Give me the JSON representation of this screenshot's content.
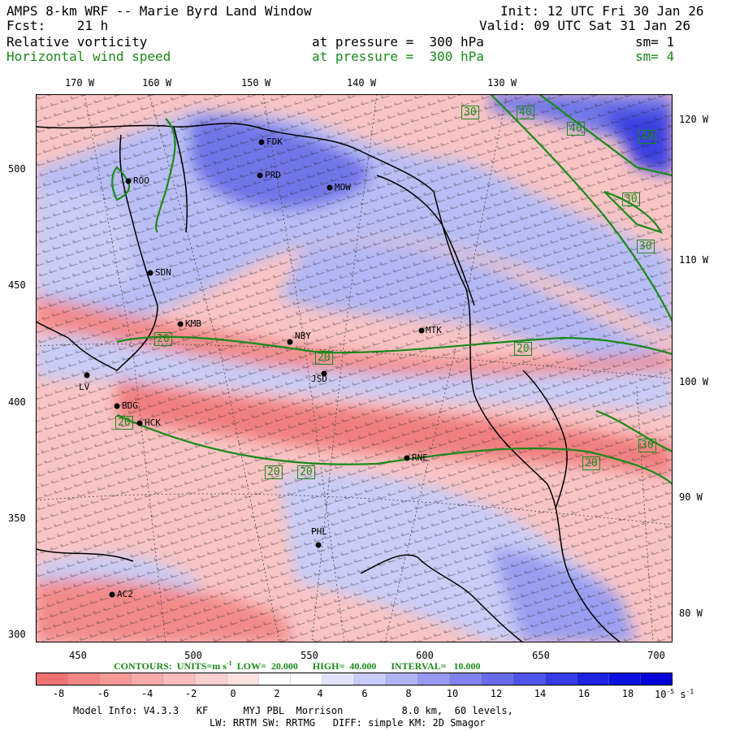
{
  "header": {
    "title": "AMPS 8-km WRF -- Marie Byrd Land Window",
    "forecast": "Fcst:    21 h",
    "init": "Init: 12 UTC Fri 30 Jan 26",
    "valid": "Valid: 09 UTC Sat 31 Jan 26"
  },
  "fields": [
    {
      "name": "Relative vorticity",
      "level": "at pressure =  300 hPa",
      "smooth": "sm= 1",
      "color": "#000000"
    },
    {
      "name": "Horizontal wind speed",
      "level": "at pressure =  300 hPa",
      "smooth": "sm= 4",
      "color": "#1a8a1a"
    }
  ],
  "longitude_labels": [
    "170 W",
    "160 W",
    "150 W",
    "140 W",
    "130 W"
  ],
  "latitude_labels": [
    "120 W",
    "110 W",
    "100 W",
    "90 W",
    "80 W"
  ],
  "x_ticks": [
    "450",
    "500",
    "550",
    "600",
    "650",
    "700"
  ],
  "y_ticks": [
    "500",
    "450",
    "400",
    "350",
    "300"
  ],
  "stations": [
    "ROO",
    "FDK",
    "PRD",
    "MOW",
    "SDN",
    "KMB",
    "NBY",
    "MTK",
    "JSD",
    "LV",
    "BDG",
    "HCK",
    "RNE",
    "PHL",
    "AC2"
  ],
  "contour_labels": [
    "20",
    "20",
    "20",
    "20",
    "20",
    "20",
    "20",
    "30",
    "30",
    "30",
    "30",
    "40",
    "40",
    "40",
    "40"
  ],
  "contours_info": {
    "text": "CONTOURS:  UNITS=m s",
    "sup": "-1",
    "low": "  LOW=  20.000      HIGH=  40.000      INTERVAL=   10.000"
  },
  "colorbar": {
    "ticks": [
      "-8",
      "-6",
      "-4",
      "-2",
      "0",
      "2",
      "4",
      "6",
      "8",
      "10",
      "12",
      "14",
      "16",
      "18"
    ],
    "last_tick": "10",
    "last_tick_exp": "-5",
    "units": "s",
    "units_exp": "-1",
    "colors": [
      "#f07373",
      "#f38585",
      "#f59898",
      "#f7aaaa",
      "#f9bcbc",
      "#fbcfcf",
      "#fde1e1",
      "#ffffff",
      "#ffffff",
      "#e2e3fb",
      "#c9cbf8",
      "#b1b3f5",
      "#989bf2",
      "#8083ef",
      "#676bec",
      "#4f53e9",
      "#363be6",
      "#1e23e3",
      "#0a10df",
      "#0000d8"
    ]
  },
  "footer": {
    "line1": "Model Info: V4.3.3   KF      MYJ PBL  Morrison          8.0 km,  60 levels,",
    "line2": "LW: RRTM SW: RRTMG   DIFF: simple KM: 2D Smagor"
  }
}
